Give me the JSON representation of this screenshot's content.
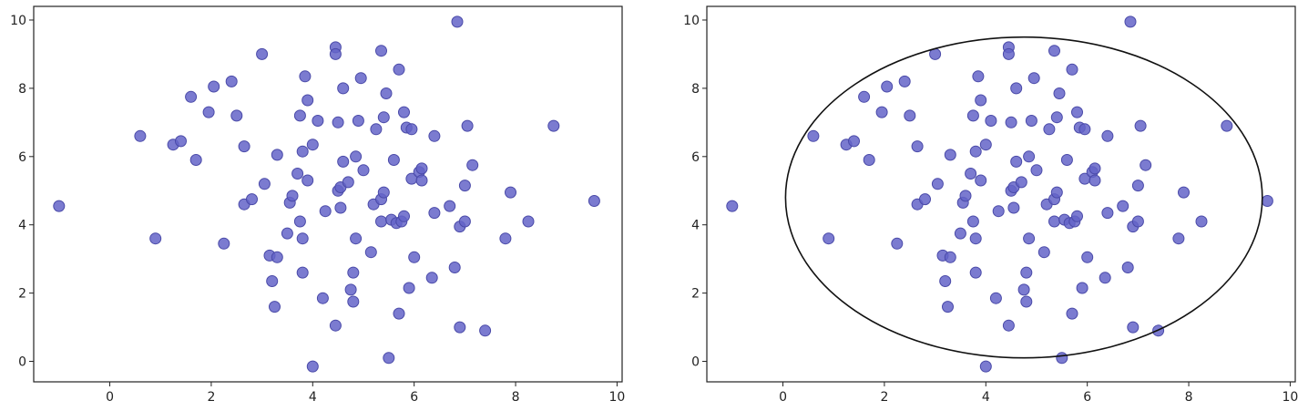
{
  "colors": {
    "point": "#6464c8",
    "point_edge": "#4a4aa8",
    "axis": "#222222",
    "ellipse": "#111111"
  },
  "chart_data": [
    {
      "type": "scatter",
      "title": "",
      "xlabel": "",
      "ylabel": "",
      "xlim": [
        -1.5,
        10.1
      ],
      "ylim": [
        -0.6,
        10.4
      ],
      "xticks": [
        0,
        2,
        4,
        6,
        8,
        10
      ],
      "yticks": [
        0,
        2,
        4,
        6,
        8,
        10
      ],
      "grid": false,
      "series": [
        {
          "points": [
            [
              -1.0,
              4.55
            ],
            [
              0.6,
              6.6
            ],
            [
              0.9,
              3.6
            ],
            [
              1.25,
              6.35
            ],
            [
              1.4,
              6.45
            ],
            [
              1.6,
              7.75
            ],
            [
              1.7,
              5.9
            ],
            [
              1.95,
              7.3
            ],
            [
              2.05,
              8.05
            ],
            [
              2.25,
              3.45
            ],
            [
              2.4,
              8.2
            ],
            [
              2.5,
              7.2
            ],
            [
              2.65,
              6.3
            ],
            [
              2.65,
              4.6
            ],
            [
              2.8,
              4.75
            ],
            [
              3.0,
              9.0
            ],
            [
              3.05,
              5.2
            ],
            [
              3.15,
              3.1
            ],
            [
              3.2,
              2.35
            ],
            [
              3.25,
              1.6
            ],
            [
              3.3,
              3.05
            ],
            [
              3.3,
              6.05
            ],
            [
              3.5,
              3.75
            ],
            [
              3.55,
              4.65
            ],
            [
              3.6,
              4.85
            ],
            [
              3.7,
              5.5
            ],
            [
              3.75,
              4.1
            ],
            [
              3.75,
              7.2
            ],
            [
              3.8,
              6.15
            ],
            [
              3.8,
              3.6
            ],
            [
              3.8,
              2.6
            ],
            [
              3.85,
              8.35
            ],
            [
              3.9,
              7.65
            ],
            [
              3.9,
              5.3
            ],
            [
              4.0,
              6.35
            ],
            [
              4.0,
              -0.15
            ],
            [
              4.1,
              7.05
            ],
            [
              4.2,
              1.85
            ],
            [
              4.25,
              4.4
            ],
            [
              4.45,
              9.2
            ],
            [
              4.45,
              9.0
            ],
            [
              4.45,
              1.05
            ],
            [
              4.5,
              7.0
            ],
            [
              4.5,
              5.0
            ],
            [
              4.55,
              4.5
            ],
            [
              4.55,
              5.1
            ],
            [
              4.6,
              5.85
            ],
            [
              4.6,
              8.0
            ],
            [
              4.7,
              5.25
            ],
            [
              4.75,
              2.1
            ],
            [
              4.8,
              2.6
            ],
            [
              4.8,
              1.75
            ],
            [
              4.85,
              6.0
            ],
            [
              4.85,
              3.6
            ],
            [
              4.9,
              7.05
            ],
            [
              4.95,
              8.3
            ],
            [
              5.0,
              5.6
            ],
            [
              5.15,
              3.2
            ],
            [
              5.2,
              4.6
            ],
            [
              5.25,
              6.8
            ],
            [
              5.35,
              9.1
            ],
            [
              5.35,
              4.75
            ],
            [
              5.35,
              4.1
            ],
            [
              5.4,
              4.95
            ],
            [
              5.4,
              7.15
            ],
            [
              5.45,
              7.85
            ],
            [
              5.5,
              0.1
            ],
            [
              5.55,
              4.15
            ],
            [
              5.6,
              5.9
            ],
            [
              5.65,
              4.05
            ],
            [
              5.7,
              8.55
            ],
            [
              5.7,
              1.4
            ],
            [
              5.75,
              4.1
            ],
            [
              5.8,
              4.25
            ],
            [
              5.8,
              7.3
            ],
            [
              5.85,
              6.85
            ],
            [
              5.9,
              2.15
            ],
            [
              5.95,
              6.8
            ],
            [
              5.95,
              5.35
            ],
            [
              6.0,
              3.05
            ],
            [
              6.1,
              5.55
            ],
            [
              6.15,
              5.65
            ],
            [
              6.15,
              5.3
            ],
            [
              6.35,
              2.45
            ],
            [
              6.4,
              6.6
            ],
            [
              6.4,
              4.35
            ],
            [
              6.7,
              4.55
            ],
            [
              6.8,
              2.75
            ],
            [
              6.85,
              9.95
            ],
            [
              6.9,
              1.0
            ],
            [
              6.9,
              3.95
            ],
            [
              7.0,
              5.15
            ],
            [
              7.0,
              4.1
            ],
            [
              7.05,
              6.9
            ],
            [
              7.15,
              5.75
            ],
            [
              7.4,
              0.9
            ],
            [
              7.8,
              3.6
            ],
            [
              7.9,
              4.95
            ],
            [
              8.25,
              4.1
            ],
            [
              8.75,
              6.9
            ],
            [
              9.55,
              4.7
            ]
          ]
        }
      ]
    },
    {
      "type": "scatter",
      "title": "",
      "xlabel": "",
      "ylabel": "",
      "xlim": [
        -1.5,
        10.1
      ],
      "ylim": [
        -0.6,
        10.4
      ],
      "xticks": [
        0,
        2,
        4,
        6,
        8,
        10
      ],
      "yticks": [
        0,
        2,
        4,
        6,
        8,
        10
      ],
      "grid": false,
      "series": [
        {
          "points": [
            [
              -1.0,
              4.55
            ],
            [
              0.6,
              6.6
            ],
            [
              0.9,
              3.6
            ],
            [
              1.25,
              6.35
            ],
            [
              1.4,
              6.45
            ],
            [
              1.6,
              7.75
            ],
            [
              1.7,
              5.9
            ],
            [
              1.95,
              7.3
            ],
            [
              2.05,
              8.05
            ],
            [
              2.25,
              3.45
            ],
            [
              2.4,
              8.2
            ],
            [
              2.5,
              7.2
            ],
            [
              2.65,
              6.3
            ],
            [
              2.65,
              4.6
            ],
            [
              2.8,
              4.75
            ],
            [
              3.0,
              9.0
            ],
            [
              3.05,
              5.2
            ],
            [
              3.15,
              3.1
            ],
            [
              3.2,
              2.35
            ],
            [
              3.25,
              1.6
            ],
            [
              3.3,
              3.05
            ],
            [
              3.3,
              6.05
            ],
            [
              3.5,
              3.75
            ],
            [
              3.55,
              4.65
            ],
            [
              3.6,
              4.85
            ],
            [
              3.7,
              5.5
            ],
            [
              3.75,
              4.1
            ],
            [
              3.75,
              7.2
            ],
            [
              3.8,
              6.15
            ],
            [
              3.8,
              3.6
            ],
            [
              3.8,
              2.6
            ],
            [
              3.85,
              8.35
            ],
            [
              3.9,
              7.65
            ],
            [
              3.9,
              5.3
            ],
            [
              4.0,
              6.35
            ],
            [
              4.0,
              -0.15
            ],
            [
              4.1,
              7.05
            ],
            [
              4.2,
              1.85
            ],
            [
              4.25,
              4.4
            ],
            [
              4.45,
              9.2
            ],
            [
              4.45,
              9.0
            ],
            [
              4.45,
              1.05
            ],
            [
              4.5,
              7.0
            ],
            [
              4.5,
              5.0
            ],
            [
              4.55,
              4.5
            ],
            [
              4.55,
              5.1
            ],
            [
              4.6,
              5.85
            ],
            [
              4.6,
              8.0
            ],
            [
              4.7,
              5.25
            ],
            [
              4.75,
              2.1
            ],
            [
              4.8,
              2.6
            ],
            [
              4.8,
              1.75
            ],
            [
              4.85,
              6.0
            ],
            [
              4.85,
              3.6
            ],
            [
              4.9,
              7.05
            ],
            [
              4.95,
              8.3
            ],
            [
              5.0,
              5.6
            ],
            [
              5.15,
              3.2
            ],
            [
              5.2,
              4.6
            ],
            [
              5.25,
              6.8
            ],
            [
              5.35,
              9.1
            ],
            [
              5.35,
              4.75
            ],
            [
              5.35,
              4.1
            ],
            [
              5.4,
              4.95
            ],
            [
              5.4,
              7.15
            ],
            [
              5.45,
              7.85
            ],
            [
              5.5,
              0.1
            ],
            [
              5.55,
              4.15
            ],
            [
              5.6,
              5.9
            ],
            [
              5.65,
              4.05
            ],
            [
              5.7,
              8.55
            ],
            [
              5.7,
              1.4
            ],
            [
              5.75,
              4.1
            ],
            [
              5.8,
              4.25
            ],
            [
              5.8,
              7.3
            ],
            [
              5.85,
              6.85
            ],
            [
              5.9,
              2.15
            ],
            [
              5.95,
              6.8
            ],
            [
              5.95,
              5.35
            ],
            [
              6.0,
              3.05
            ],
            [
              6.1,
              5.55
            ],
            [
              6.15,
              5.65
            ],
            [
              6.15,
              5.3
            ],
            [
              6.35,
              2.45
            ],
            [
              6.4,
              6.6
            ],
            [
              6.4,
              4.35
            ],
            [
              6.7,
              4.55
            ],
            [
              6.8,
              2.75
            ],
            [
              6.85,
              9.95
            ],
            [
              6.9,
              1.0
            ],
            [
              6.9,
              3.95
            ],
            [
              7.0,
              5.15
            ],
            [
              7.0,
              4.1
            ],
            [
              7.05,
              6.9
            ],
            [
              7.15,
              5.75
            ],
            [
              7.4,
              0.9
            ],
            [
              7.8,
              3.6
            ],
            [
              7.9,
              4.95
            ],
            [
              8.25,
              4.1
            ],
            [
              8.75,
              6.9
            ],
            [
              9.55,
              4.7
            ]
          ]
        }
      ],
      "ellipse": {
        "center": [
          4.75,
          4.8
        ],
        "rx": 4.7,
        "ry": 4.7
      }
    }
  ]
}
